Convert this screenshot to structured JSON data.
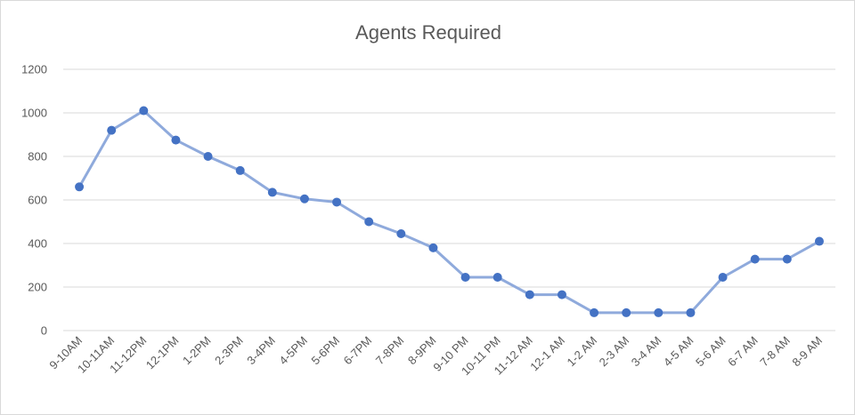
{
  "chart_data": {
    "type": "line",
    "title": "Agents Required",
    "xlabel": "",
    "ylabel": "",
    "ylim": [
      0,
      1200
    ],
    "yticks": [
      0,
      200,
      400,
      600,
      800,
      1000,
      1200
    ],
    "grid": true,
    "legend": "none",
    "categories": [
      "9-10AM",
      "10-11AM",
      "11-12PM",
      "12-1PM",
      "1-2PM",
      "2-3PM",
      "3-4PM",
      "4-5PM",
      "5-6PM",
      "6-7PM",
      "7-8PM",
      "8-9PM",
      "9-10 PM",
      "10-11 PM",
      "11-12 AM",
      "12-1 AM",
      "1-2 AM",
      "2-3 AM",
      "3-4 AM",
      "4-5 AM",
      "5-6 AM",
      "6-7 AM",
      "7-8 AM",
      "8-9 AM"
    ],
    "series": [
      {
        "values": [
          660,
          920,
          1010,
          875,
          800,
          735,
          635,
          605,
          590,
          500,
          445,
          380,
          245,
          245,
          165,
          165,
          82,
          82,
          82,
          82,
          245,
          328,
          328,
          410
        ],
        "line_color": "#8faadc",
        "marker_color": "#4472c4"
      }
    ]
  }
}
